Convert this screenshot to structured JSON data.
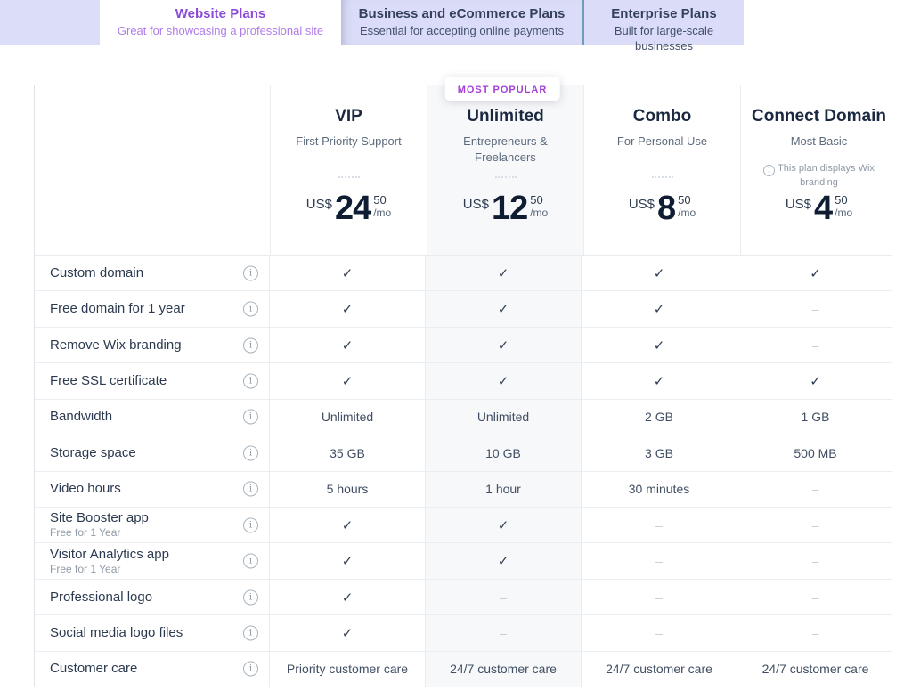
{
  "tabs": [
    {
      "title": "Website Plans",
      "subtitle": "Great for showcasing a professional site",
      "active": true
    },
    {
      "title": "Business and eCommerce Plans",
      "subtitle": "Essential for accepting online payments",
      "active": false
    },
    {
      "title": "Enterprise Plans",
      "subtitle": "Built for large-scale businesses",
      "active": false
    }
  ],
  "badge": {
    "label": "MOST POPULAR"
  },
  "plans": [
    {
      "name": "VIP",
      "subtitle": "First Priority Support",
      "currency": "US$",
      "price_whole": "24",
      "price_cents": "50",
      "period": "/mo"
    },
    {
      "name": "Unlimited",
      "subtitle": "Entrepreneurs & Freelancers",
      "currency": "US$",
      "price_whole": "12",
      "price_cents": "50",
      "period": "/mo",
      "highlighted": true,
      "most_popular": true
    },
    {
      "name": "Combo",
      "subtitle": "For Personal Use",
      "currency": "US$",
      "price_whole": "8",
      "price_cents": "50",
      "period": "/mo"
    },
    {
      "name": "Connect Domain",
      "subtitle": "Most Basic",
      "note": "This plan displays Wix branding",
      "currency": "US$",
      "price_whole": "4",
      "price_cents": "50",
      "period": "/mo"
    }
  ],
  "features": [
    {
      "label": "Custom domain",
      "values": [
        "check",
        "check",
        "check",
        "check"
      ]
    },
    {
      "label": "Free domain for 1 year",
      "values": [
        "check",
        "check",
        "check",
        "dash"
      ]
    },
    {
      "label": "Remove Wix branding",
      "values": [
        "check",
        "check",
        "check",
        "dash"
      ]
    },
    {
      "label": "Free SSL certificate",
      "values": [
        "check",
        "check",
        "check",
        "check"
      ]
    },
    {
      "label": "Bandwidth",
      "values": [
        "Unlimited",
        "Unlimited",
        "2 GB",
        "1 GB"
      ]
    },
    {
      "label": "Storage space",
      "values": [
        "35 GB",
        "10 GB",
        "3 GB",
        "500 MB"
      ]
    },
    {
      "label": "Video hours",
      "values": [
        "5 hours",
        "1 hour",
        "30 minutes",
        "dash"
      ]
    },
    {
      "label": "Site Booster app",
      "sublabel": "Free for 1 Year",
      "values": [
        "check",
        "check",
        "dash",
        "dash"
      ]
    },
    {
      "label": "Visitor Analytics app",
      "sublabel": "Free for 1 Year",
      "values": [
        "check",
        "check",
        "dash",
        "dash"
      ]
    },
    {
      "label": "Professional logo",
      "values": [
        "check",
        "dash",
        "dash",
        "dash"
      ]
    },
    {
      "label": "Social media logo files",
      "values": [
        "check",
        "dash",
        "dash",
        "dash"
      ]
    },
    {
      "label": "Customer care",
      "values": [
        "Priority customer care",
        "24/7 customer care",
        "24/7 customer care",
        "24/7 customer care"
      ]
    }
  ],
  "icons": {
    "check": "✓",
    "dash": "–",
    "info": "i"
  },
  "colors": {
    "tab_lavender": "#dcddf8",
    "active_tab_purple": "#8a4bd6",
    "active_tab_subtitle_purple": "#b07ce8",
    "badge_purple": "#a43fd9",
    "dark_text": "#1a2940",
    "check_color": "#2f3d52",
    "dash_color": "#c6ccd4",
    "highlight_column_bg": "#f7f8fa",
    "table_border": "#dfe3e8",
    "tab_divider_blue": "#6f9cba"
  }
}
